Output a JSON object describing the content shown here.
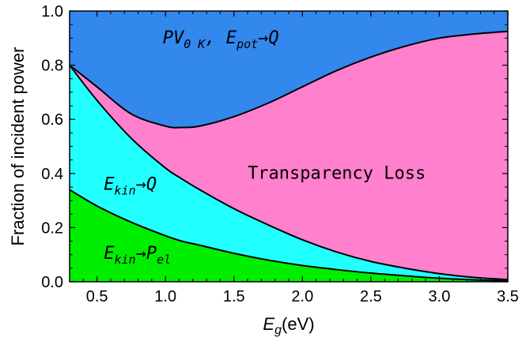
{
  "chart_data": {
    "type": "area",
    "title": "",
    "xlabel": "E_g(eV)",
    "xlabel_main": "E",
    "xlabel_sub": "g",
    "xlabel_unit": "(eV)",
    "ylabel": "Fraction of incident power",
    "xlim": [
      0.3,
      3.5
    ],
    "ylim": [
      0.0,
      1.0
    ],
    "xticks": [
      0.5,
      1.0,
      1.5,
      2.0,
      2.5,
      3.0,
      3.5
    ],
    "xtick_labels": [
      "0.5",
      "1.0",
      "1.5",
      "2.0",
      "2.5",
      "3.0",
      "3.5"
    ],
    "yticks": [
      0.0,
      0.2,
      0.4,
      0.6,
      0.8,
      1.0
    ],
    "ytick_labels": [
      "0.0",
      "0.2",
      "0.4",
      "0.6",
      "0.8",
      "1.0"
    ],
    "grid": false,
    "x": [
      0.3,
      0.5,
      0.75,
      1.0,
      1.12,
      1.25,
      1.5,
      1.75,
      2.0,
      2.25,
      2.5,
      2.75,
      3.0,
      3.25,
      3.5
    ],
    "boundaries": [
      {
        "id": "green_top",
        "values": [
          0.34,
          0.28,
          0.22,
          0.17,
          0.15,
          0.135,
          0.105,
          0.08,
          0.06,
          0.045,
          0.032,
          0.022,
          0.013,
          0.007,
          0.003
        ]
      },
      {
        "id": "cyan_top",
        "values": [
          0.8,
          0.67,
          0.53,
          0.42,
          0.38,
          0.34,
          0.27,
          0.21,
          0.155,
          0.11,
          0.075,
          0.05,
          0.03,
          0.016,
          0.008
        ]
      },
      {
        "id": "magenta_top",
        "values": [
          0.8,
          0.72,
          0.62,
          0.575,
          0.57,
          0.575,
          0.61,
          0.66,
          0.72,
          0.78,
          0.83,
          0.87,
          0.9,
          0.915,
          0.925
        ]
      }
    ],
    "regions": [
      {
        "label_parts": [
          [
            "E",
            "main"
          ],
          [
            "kin",
            "sub"
          ],
          [
            "→",
            "main"
          ],
          [
            "P",
            "main"
          ],
          [
            "el",
            "sub"
          ]
        ],
        "color": "#00ee00",
        "label_x": 0.55,
        "label_y": 0.085
      },
      {
        "label_parts": [
          [
            "E",
            "main"
          ],
          [
            "kin",
            "sub"
          ],
          [
            "→Q",
            "main"
          ]
        ],
        "color": "#22ffff",
        "label_x": 0.55,
        "label_y": 0.34
      },
      {
        "label_parts": [
          [
            "Transparency Loss",
            "plain"
          ]
        ],
        "color": "#ff80cc",
        "label_x": 1.6,
        "label_y": 0.38
      },
      {
        "label_parts": [
          [
            "PV",
            "main"
          ],
          [
            "0 K",
            "sub"
          ],
          [
            ", E",
            "main"
          ],
          [
            "pot",
            "sub"
          ],
          [
            "→Q",
            "main"
          ]
        ],
        "color": "#3388ee",
        "label_x": 0.98,
        "label_y": 0.88
      }
    ]
  }
}
